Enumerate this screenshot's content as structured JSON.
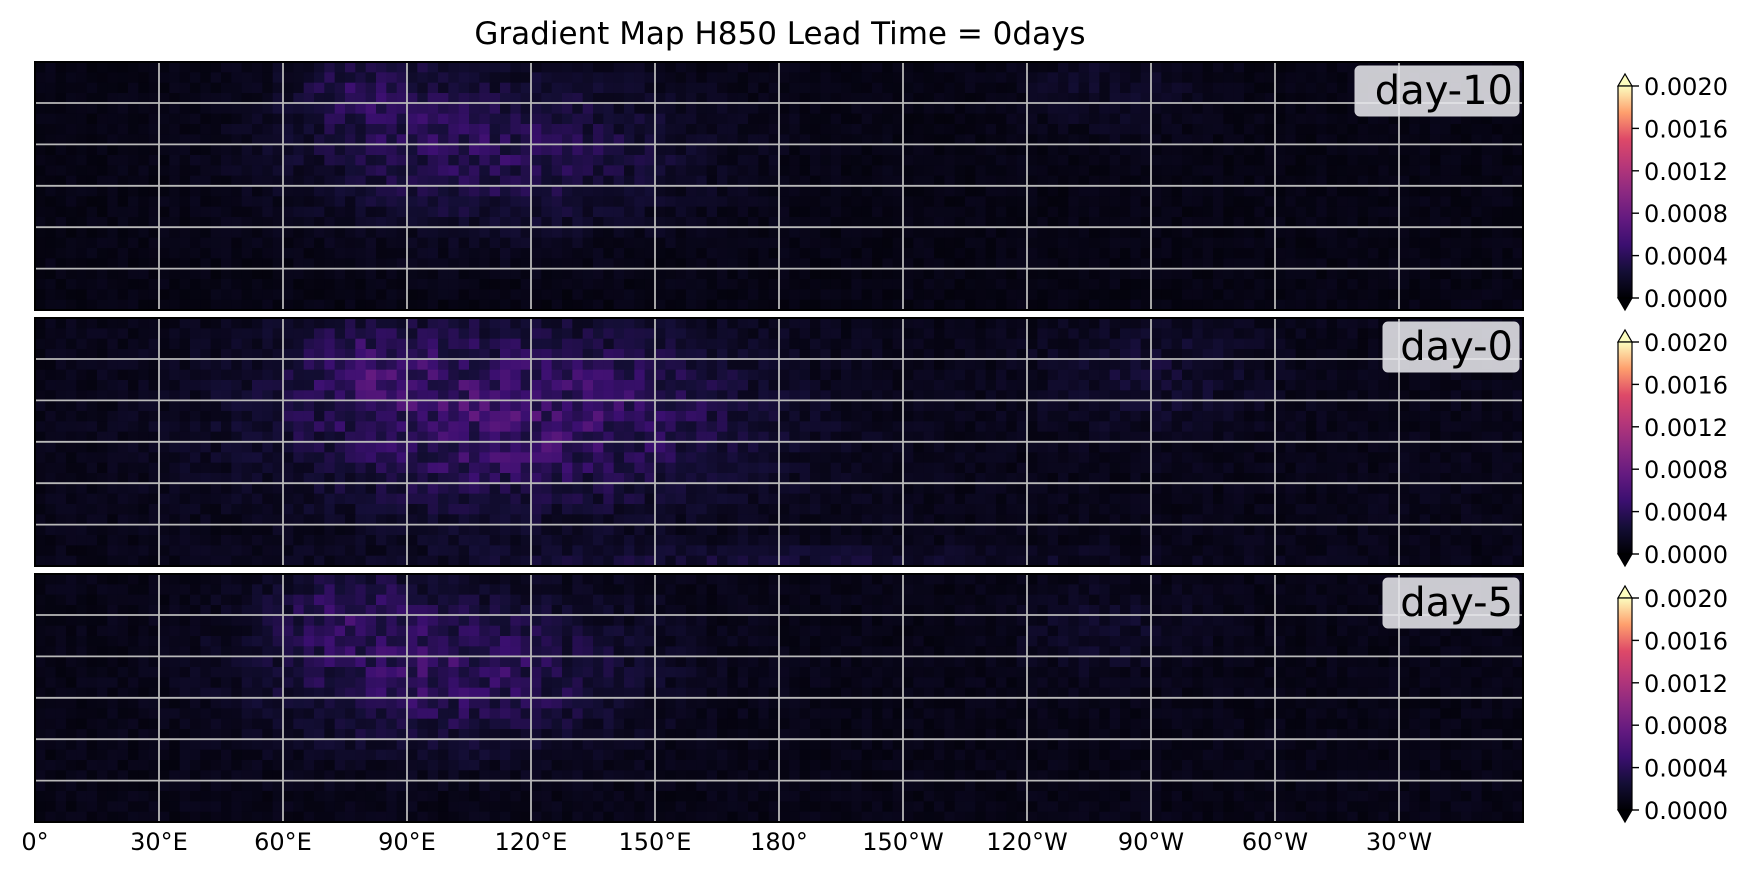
{
  "chart_data": {
    "type": "heatmap",
    "title": "Gradient Map  H850   Lead Time = 0days",
    "colormap": "magma",
    "colorbar": {
      "ticks": [
        "0.0000",
        "0.0004",
        "0.0008",
        "0.0012",
        "0.0016",
        "0.0020"
      ],
      "range": [
        0.0,
        0.002
      ],
      "extend": "both"
    },
    "x_ticks": [
      "0°",
      "30°E",
      "60°E",
      "90°E",
      "120°E",
      "150°E",
      "180°",
      "150°W",
      "120°W",
      "90°W",
      "60°W",
      "30°W"
    ],
    "grid": true,
    "grid_cells": {
      "rows": 24,
      "cols": 144
    },
    "panels": [
      {
        "label": "day-10",
        "background": 8e-05,
        "hotspots": [
          {
            "lon": 110,
            "row": 8,
            "amp": 0.0003,
            "lon_sd": 32,
            "row_sd": 5
          },
          {
            "lon": 80,
            "row": 2,
            "amp": 0.0002,
            "lon_sd": 12,
            "row_sd": 3
          },
          {
            "lon": 260,
            "row": 2,
            "amp": 0.0001,
            "lon_sd": 15,
            "row_sd": 3
          }
        ]
      },
      {
        "label": "day-0",
        "background": 0.0001,
        "hotspots": [
          {
            "lon": 115,
            "row": 9,
            "amp": 0.00042,
            "lon_sd": 38,
            "row_sd": 6
          },
          {
            "lon": 80,
            "row": 4,
            "amp": 0.0002,
            "lon_sd": 12,
            "row_sd": 3
          },
          {
            "lon": 270,
            "row": 5,
            "amp": 0.00012,
            "lon_sd": 18,
            "row_sd": 4
          },
          {
            "lon": 180,
            "row": 23,
            "amp": 0.00012,
            "lon_sd": 60,
            "row_sd": 1
          }
        ]
      },
      {
        "label": "day-5",
        "background": 9e-05,
        "hotspots": [
          {
            "lon": 100,
            "row": 9,
            "amp": 0.00034,
            "lon_sd": 30,
            "row_sd": 5
          },
          {
            "lon": 75,
            "row": 3,
            "amp": 0.00022,
            "lon_sd": 12,
            "row_sd": 3
          },
          {
            "lon": 260,
            "row": 5,
            "amp": 0.0001,
            "lon_sd": 15,
            "row_sd": 3
          }
        ]
      }
    ]
  }
}
